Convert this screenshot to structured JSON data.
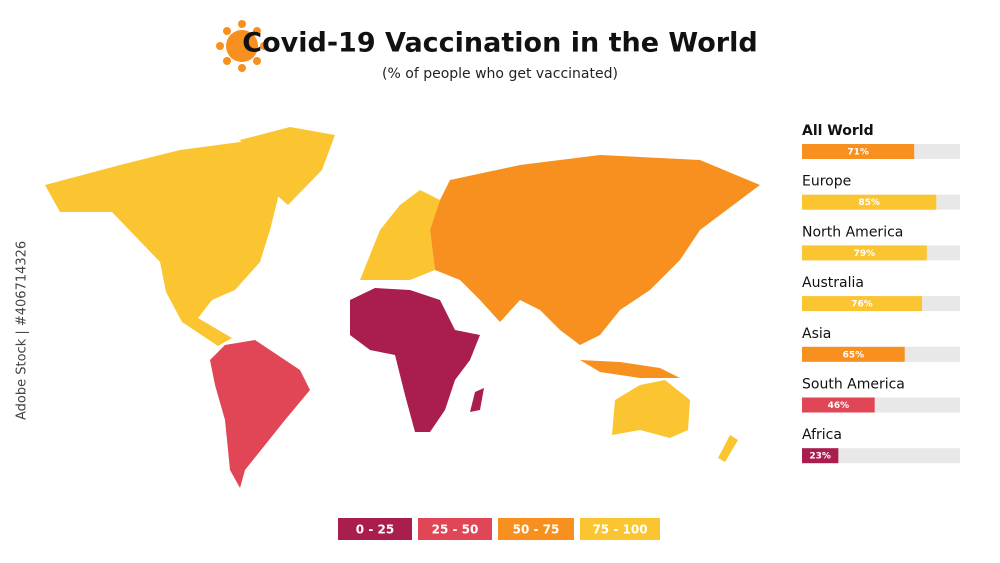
{
  "chart_data": {
    "type": "bar",
    "orientation": "horizontal",
    "title": "Covid-19 Vaccination in the World",
    "subtitle": "(% of people who get vaccinated)",
    "categories": [
      "All World",
      "Europe",
      "North America",
      "Australia",
      "Asia",
      "South America",
      "Africa"
    ],
    "values": [
      71,
      85,
      79,
      76,
      65,
      46,
      23
    ],
    "value_labels": [
      "71%",
      "85%",
      "79%",
      "76%",
      "65%",
      "46%",
      "23%"
    ],
    "colors": [
      "#f7901e",
      "#fbc531",
      "#fbc531",
      "#fbc531",
      "#f7901e",
      "#e04656",
      "#a91d4f"
    ],
    "xlim": [
      0,
      100
    ],
    "legend": [
      {
        "label": "0 - 25",
        "color": "#a91d4f"
      },
      {
        "label": "25 - 50",
        "color": "#e04656"
      },
      {
        "label": "50 - 75",
        "color": "#f7901e"
      },
      {
        "label": "75 - 100",
        "color": "#fbc531"
      }
    ],
    "watermark": "Adobe Stock | #406714326"
  }
}
